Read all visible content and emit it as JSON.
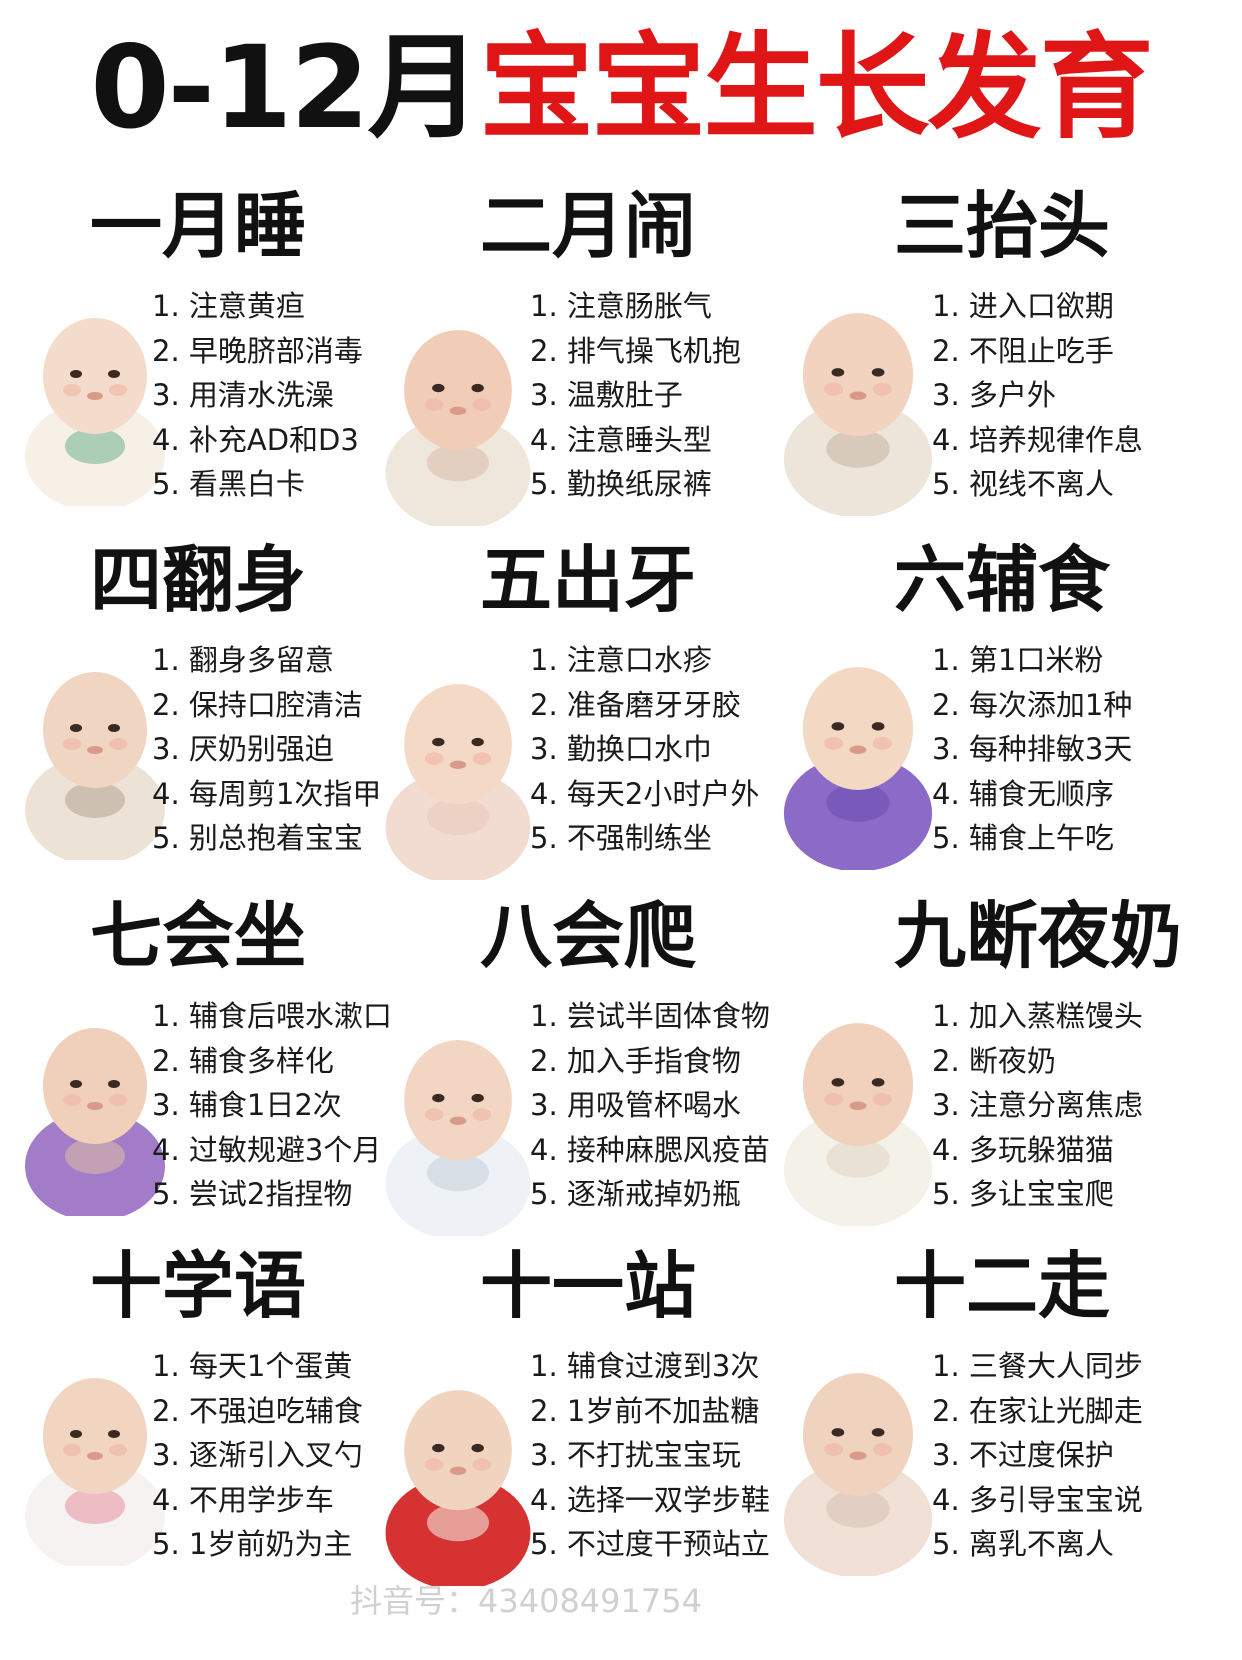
{
  "title": {
    "part1": "0-12月",
    "part2": "宝宝生长发育"
  },
  "colors": {
    "title_black": "#111111",
    "title_red": "#e01616"
  },
  "sections": [
    {
      "heading": "一月睡",
      "photo": "baby-sleeping-photo",
      "tips": [
        "1. 注意黄疸",
        "2. 早晚脐部消毒",
        "3. 用清水洗澡",
        "4. 补充AD和D3",
        "5. 看黑白卡"
      ]
    },
    {
      "heading": "二月闹",
      "photo": "baby-crying-photo",
      "tips": [
        "1. 注意肠胀气",
        "2. 排气操飞机抱",
        "3. 温敷肚子",
        "4. 注意睡头型",
        "5. 勤换纸尿裤"
      ]
    },
    {
      "heading": "三抬头",
      "photo": "baby-lifting-head-photo",
      "tips": [
        "1. 进入口欲期",
        "2. 不阻止吃手",
        "3. 多户外",
        "4. 培养规律作息",
        "5. 视线不离人"
      ]
    },
    {
      "heading": "四翻身",
      "photo": "baby-rolling-photo",
      "tips": [
        "1. 翻身多留意",
        "2. 保持口腔清洁",
        "3. 厌奶别强迫",
        "4. 每周剪1次指甲",
        "5. 别总抱着宝宝"
      ]
    },
    {
      "heading": "五出牙",
      "photo": "baby-onesie-photo",
      "tips": [
        "1. 注意口水疹",
        "2. 准备磨牙牙胶",
        "3. 勤换口水巾",
        "4. 每天2小时户外",
        "5. 不强制练坐"
      ]
    },
    {
      "heading": "六辅食",
      "photo": "baby-purple-hat-photo",
      "tips": [
        "1. 第1口米粉",
        "2. 每次添加1种",
        "3. 每种排敏3天",
        "4. 辅食无顺序",
        "5. 辅食上午吃"
      ]
    },
    {
      "heading": "七会坐",
      "photo": "baby-purple-hood-photo",
      "tips": [
        "1. 辅食后喂水漱口",
        "2. 辅食多样化",
        "3. 辅食1日2次",
        "4. 过敏规避3个月",
        "5. 尝试2指捏物"
      ]
    },
    {
      "heading": "八会爬",
      "photo": "baby-crawling-photo",
      "tips": [
        "1. 尝试半固体食物",
        "2. 加入手指食物",
        "3. 用吸管杯喝水",
        "4. 接种麻腮风疫苗",
        "5. 逐渐戒掉奶瓶"
      ]
    },
    {
      "heading": "九断夜奶",
      "photo": "baby-sitting-photo",
      "tips": [
        "1. 加入蒸糕馒头",
        "2. 断夜奶",
        "3. 注意分离焦虑",
        "4. 多玩躲猫猫",
        "5. 多让宝宝爬"
      ]
    },
    {
      "heading": "十学语",
      "photo": "baby-floral-pajama-photo",
      "tips": [
        "1. 每天1个蛋黄",
        "2. 不强迫吃辅食",
        "3. 逐渐引入叉勺",
        "4. 不用学步车",
        "5. 1岁前奶为主"
      ]
    },
    {
      "heading": "十一站",
      "photo": "baby-beret-photo",
      "tips": [
        "1. 辅食过渡到3次",
        "2. 1岁前不加盐糖",
        "3. 不打扰宝宝玩",
        "4. 选择一双学步鞋",
        "5. 不过度干预站立"
      ]
    },
    {
      "heading": "十二走",
      "photo": "baby-pink-outfit-photo",
      "tips": [
        "1. 三餐大人同步",
        "2. 在家让光脚走",
        "3. 不过度保护",
        "4. 多引导宝宝说",
        "5. 离乳不离人"
      ]
    }
  ],
  "watermark": "抖音号：43408491754"
}
